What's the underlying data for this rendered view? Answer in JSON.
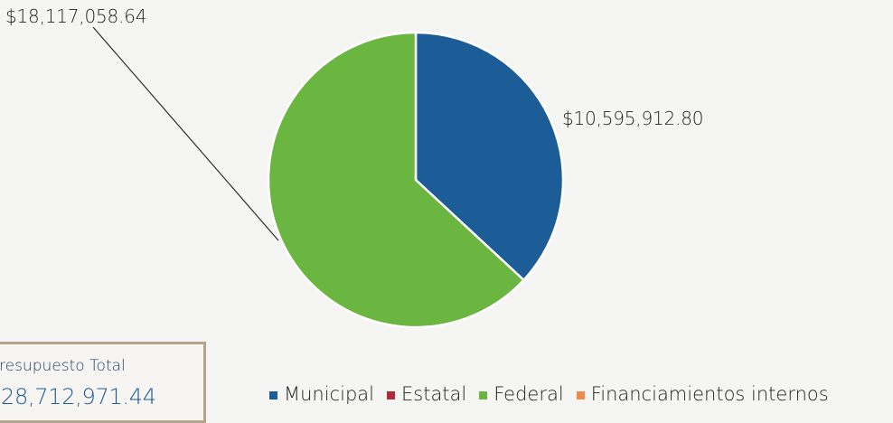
{
  "chart_data": {
    "type": "pie",
    "title": "",
    "slices": [
      {
        "name": "Municipal",
        "value": 10595912.8,
        "label": "$10,595,912.80",
        "color": "#1c5c97"
      },
      {
        "name": "Estatal",
        "value": 0,
        "label": "",
        "color": "#b12a3a"
      },
      {
        "name": "Federal",
        "value": 18117058.64,
        "label": "$18,117,058.64",
        "color": "#6bb641"
      },
      {
        "name": "Financiamientos internos",
        "value": 0,
        "label": "",
        "color": "#f08a4b"
      }
    ],
    "legend_placement": "bottom"
  },
  "total": {
    "title": "resupuesto Total",
    "value": "28,712,971.44"
  }
}
